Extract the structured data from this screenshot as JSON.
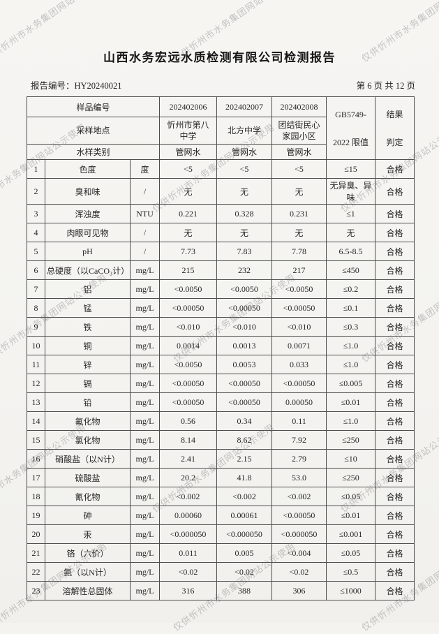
{
  "title": "山西水务宏远水质检测有限公司检测报告",
  "report_no": "报告编号：HY20240021",
  "page_info": "第 6 页 共 12 页",
  "watermark": "仅供忻州市水务集团网站公示使用",
  "table": {
    "header": {
      "sample_id_label": "样品编号",
      "sample_ids": [
        "202402006",
        "202402007",
        "202402008"
      ],
      "location_label": "采样地点",
      "locations": [
        "忻州市第八\n中学",
        "北方中学",
        "团结街民心\n家园小区"
      ],
      "type_label": "水样类别",
      "types": [
        "管网水",
        "管网水",
        "管网水"
      ],
      "limit_label": "GB5749-\n2022 限值",
      "result_label": "结果\n判定"
    },
    "rows": [
      {
        "no": "1",
        "item": "色度",
        "unit": "度",
        "values": [
          "<5",
          "<5",
          "<5"
        ],
        "limit": "≤15",
        "result": "合格"
      },
      {
        "no": "2",
        "item": "臭和味",
        "unit": "/",
        "values": [
          "无",
          "无",
          "无"
        ],
        "limit": "无异臭、异味",
        "result": "合格"
      },
      {
        "no": "3",
        "item": "浑浊度",
        "unit": "NTU",
        "values": [
          "0.221",
          "0.328",
          "0.231"
        ],
        "limit": "≤1",
        "result": "合格"
      },
      {
        "no": "4",
        "item": "肉眼可见物",
        "unit": "/",
        "values": [
          "无",
          "无",
          "无"
        ],
        "limit": "无",
        "result": "合格"
      },
      {
        "no": "5",
        "item": "pH",
        "unit": "/",
        "values": [
          "7.73",
          "7.83",
          "7.78"
        ],
        "limit": "6.5-8.5",
        "result": "合格"
      },
      {
        "no": "6",
        "item": "总硬度（以CaCO₃计）",
        "unit": "mg/L",
        "values": [
          "215",
          "232",
          "217"
        ],
        "limit": "≤450",
        "result": "合格"
      },
      {
        "no": "7",
        "item": "铝",
        "unit": "mg/L",
        "values": [
          "<0.0050",
          "<0.0050",
          "<0.0050"
        ],
        "limit": "≤0.2",
        "result": "合格"
      },
      {
        "no": "8",
        "item": "锰",
        "unit": "mg/L",
        "values": [
          "<0.00050",
          "<0.00050",
          "<0.00050"
        ],
        "limit": "≤0.1",
        "result": "合格"
      },
      {
        "no": "9",
        "item": "铁",
        "unit": "mg/L",
        "values": [
          "<0.010",
          "<0.010",
          "<0.010"
        ],
        "limit": "≤0.3",
        "result": "合格"
      },
      {
        "no": "10",
        "item": "铜",
        "unit": "mg/L",
        "values": [
          "0.0014",
          "0.0013",
          "0.0071"
        ],
        "limit": "≤1.0",
        "result": "合格"
      },
      {
        "no": "11",
        "item": "锌",
        "unit": "mg/L",
        "values": [
          "<0.0050",
          "0.0053",
          "0.033"
        ],
        "limit": "≤1.0",
        "result": "合格"
      },
      {
        "no": "12",
        "item": "镉",
        "unit": "mg/L",
        "values": [
          "<0.00050",
          "<0.00050",
          "<0.00050"
        ],
        "limit": "≤0.005",
        "result": "合格"
      },
      {
        "no": "13",
        "item": "铅",
        "unit": "mg/L",
        "values": [
          "<0.00050",
          "<0.00050",
          "0.00050"
        ],
        "limit": "≤0.01",
        "result": "合格"
      },
      {
        "no": "14",
        "item": "氟化物",
        "unit": "mg/L",
        "values": [
          "0.56",
          "0.34",
          "0.11"
        ],
        "limit": "≤1.0",
        "result": "合格"
      },
      {
        "no": "15",
        "item": "氯化物",
        "unit": "mg/L",
        "values": [
          "8.14",
          "8.62",
          "7.92"
        ],
        "limit": "≤250",
        "result": "合格"
      },
      {
        "no": "16",
        "item": "硝酸盐（以N计）",
        "unit": "mg/L",
        "values": [
          "2.41",
          "2.15",
          "2.79"
        ],
        "limit": "≤10",
        "result": "合格"
      },
      {
        "no": "17",
        "item": "硫酸盐",
        "unit": "mg/L",
        "values": [
          "20.2",
          "41.8",
          "53.0"
        ],
        "limit": "≤250",
        "result": "合格"
      },
      {
        "no": "18",
        "item": "氰化物",
        "unit": "mg/L",
        "values": [
          "<0.002",
          "<0.002",
          "<0.002"
        ],
        "limit": "≤0.05",
        "result": "合格"
      },
      {
        "no": "19",
        "item": "砷",
        "unit": "mg/L",
        "values": [
          "0.00060",
          "0.00061",
          "<0.00050"
        ],
        "limit": "≤0.01",
        "result": "合格"
      },
      {
        "no": "20",
        "item": "汞",
        "unit": "mg/L",
        "values": [
          "<0.000050",
          "<0.000050",
          "<0.000050"
        ],
        "limit": "≤0.001",
        "result": "合格"
      },
      {
        "no": "21",
        "item": "铬（六价）",
        "unit": "mg/L",
        "values": [
          "0.011",
          "0.005",
          "<0.004"
        ],
        "limit": "≤0.05",
        "result": "合格"
      },
      {
        "no": "22",
        "item": "氨（以N计）",
        "unit": "mg/L",
        "values": [
          "<0.02",
          "<0.02",
          "<0.02"
        ],
        "limit": "≤0.5",
        "result": "合格"
      },
      {
        "no": "23",
        "item": "溶解性总固体",
        "unit": "mg/L",
        "values": [
          "316",
          "388",
          "306"
        ],
        "limit": "≤1000",
        "result": "合格"
      }
    ]
  }
}
